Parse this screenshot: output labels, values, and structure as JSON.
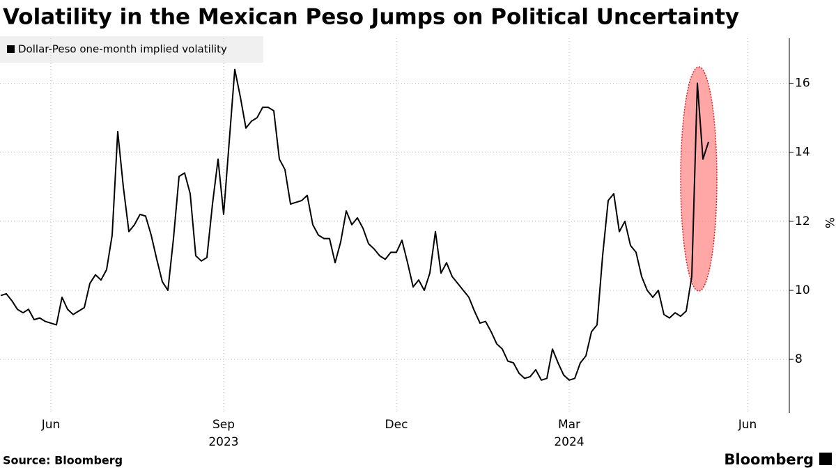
{
  "chart_data": {
    "type": "line",
    "title": "Volatility in the Mexican Peso Jumps on Political Uncertainty",
    "y_axis_label": "%",
    "source": "Source: Bloomberg",
    "brand": "Bloomberg",
    "years": [
      "2023",
      "2024"
    ],
    "categories": [
      null,
      null,
      null,
      null,
      null,
      null,
      null,
      null,
      null,
      "Jun",
      null,
      null,
      null,
      null,
      null,
      null,
      null,
      null,
      null,
      null,
      null,
      null,
      null,
      null,
      null,
      null,
      null,
      null,
      null,
      null,
      null,
      null,
      null,
      null,
      null,
      null,
      null,
      null,
      null,
      null,
      "Sep",
      null,
      null,
      null,
      null,
      null,
      null,
      null,
      null,
      null,
      null,
      null,
      null,
      null,
      null,
      null,
      null,
      null,
      null,
      null,
      null,
      null,
      null,
      null,
      null,
      null,
      null,
      null,
      null,
      null,
      null,
      "Dec",
      null,
      null,
      null,
      null,
      null,
      null,
      null,
      null,
      null,
      null,
      null,
      null,
      null,
      null,
      null,
      null,
      null,
      null,
      null,
      null,
      null,
      null,
      null,
      null,
      null,
      null,
      null,
      null,
      null,
      null,
      "Mar",
      null,
      null,
      null,
      null,
      null,
      null,
      null,
      null,
      null,
      null,
      null,
      null,
      null,
      null,
      null,
      null,
      null,
      null,
      null,
      null,
      null,
      null,
      null,
      null,
      null,
      null,
      null,
      null,
      null,
      null,
      null,
      "Jun"
    ],
    "series": [
      {
        "name": "Dollar-Peso one-month implied volatility",
        "color": "#000000",
        "values": [
          9.85,
          9.9,
          9.7,
          9.45,
          9.35,
          9.45,
          9.15,
          9.2,
          9.1,
          9.05,
          9.0,
          9.8,
          9.45,
          9.3,
          9.4,
          9.5,
          10.2,
          10.45,
          10.3,
          10.6,
          11.6,
          14.6,
          13.0,
          11.7,
          11.9,
          12.2,
          12.15,
          11.6,
          10.9,
          10.25,
          10.0,
          11.5,
          13.3,
          13.4,
          12.8,
          11.0,
          10.85,
          10.95,
          12.5,
          13.8,
          12.2,
          14.3,
          16.4,
          15.6,
          14.7,
          14.9,
          15.0,
          15.3,
          15.3,
          15.2,
          13.8,
          13.5,
          12.5,
          12.55,
          12.6,
          12.75,
          11.9,
          11.6,
          11.5,
          11.5,
          10.8,
          11.4,
          12.3,
          11.9,
          12.1,
          11.8,
          11.35,
          11.2,
          11.0,
          10.9,
          11.1,
          11.1,
          11.45,
          10.8,
          10.1,
          10.3,
          10.0,
          10.5,
          11.7,
          10.5,
          10.8,
          10.4,
          10.2,
          10.0,
          9.8,
          9.4,
          9.05,
          9.1,
          8.8,
          8.45,
          8.3,
          7.95,
          7.9,
          7.6,
          7.45,
          7.5,
          7.7,
          7.4,
          7.45,
          8.3,
          7.9,
          7.55,
          7.4,
          7.45,
          7.9,
          8.1,
          8.8,
          9.0,
          11.0,
          12.6,
          12.8,
          11.7,
          12.0,
          11.3,
          11.1,
          10.4,
          10.0,
          9.8,
          10.0,
          9.3,
          9.2,
          9.35,
          9.25,
          9.4,
          10.4,
          16.0,
          13.8,
          14.3,
          null,
          null,
          null,
          null,
          null,
          null,
          null
        ]
      }
    ],
    "ylim": [
      6.45,
      17.3
    ],
    "yticks": [
      8,
      10,
      12,
      14,
      16
    ],
    "grid": true,
    "legend": "top-left"
  }
}
